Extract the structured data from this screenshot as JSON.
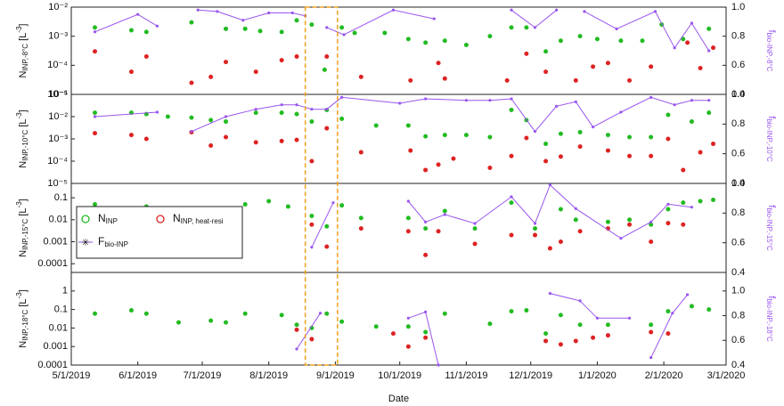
{
  "annotation": {
    "x": [
      "8/18/2019",
      "9/2/2019"
    ],
    "color": "#f0a020"
  },
  "chart_data": [
    {
      "type": "scatter",
      "log_y": true,
      "ylabel": [
        "N",
        "INP,-8°C",
        " [L",
        "-3",
        "]"
      ],
      "y2label": [
        "f",
        "bio-INP,-8°C"
      ],
      "xlim": [
        "5/1/2019",
        "3/1/2020"
      ],
      "ylim": [
        1e-05,
        0.01
      ],
      "yticks": [
        {
          "value": 0.01,
          "label": "10⁻²"
        },
        {
          "value": 0.001,
          "label": "10⁻³"
        },
        {
          "value": 0.0001,
          "label": "10⁻⁴"
        },
        {
          "value": 1e-05,
          "label": "10⁻⁵"
        }
      ],
      "y2lim": [
        0.4,
        1.0
      ],
      "y2ticks": [
        0.4,
        0.6,
        0.8,
        {
          "value": 1.0,
          "label": "1.0"
        }
      ],
      "series": [
        {
          "color": "#22bb22",
          "marker": "circle",
          "x": [
            "5/12/2019",
            "5/29/2019",
            "6/5/2019",
            "6/26/2019",
            "7/12/2019",
            "7/21/2019",
            "7/28/2019",
            "8/7/2019",
            "8/14/2019",
            "8/21/2019",
            "8/27/2019",
            "9/4/2019",
            "9/10/2019",
            "9/24/2019",
            "10/5/2019",
            "10/13/2019",
            "10/22/2019",
            "11/1/2019",
            "11/12/2019",
            "11/22/2019",
            "11/29/2019",
            "12/8/2019",
            "12/15/2019",
            "12/24/2019",
            "1/1/2020",
            "1/12/2020",
            "1/22/2020",
            "1/31/2020",
            "2/10/2020",
            "2/22/2020"
          ],
          "values": [
            0.002,
            0.0016,
            0.0014,
            0.003,
            0.0018,
            0.0018,
            0.0015,
            0.0014,
            0.0035,
            0.0025,
            7e-05,
            0.002,
            0.0013,
            0.0013,
            0.0008,
            0.0006,
            0.0007,
            0.0005,
            0.001,
            0.002,
            0.002,
            0.0003,
            0.0007,
            0.001,
            0.0008,
            0.0007,
            0.0007,
            0.0025,
            0.0008,
            0.0018
          ]
        },
        {
          "color": "#dd2222",
          "marker": "circle",
          "x": [
            "5/12/2019",
            "5/29/2019",
            "6/5/2019",
            "6/26/2019",
            "7/5/2019",
            "7/12/2019",
            "7/26/2019",
            "8/7/2019",
            "8/14/2019",
            "8/28/2019",
            "9/13/2019",
            "10/6/2019",
            "10/19/2019",
            "10/22/2019",
            "11/20/2019",
            "11/29/2019",
            "12/8/2019",
            "12/22/2019",
            "12/30/2019",
            "1/6/2020",
            "1/16/2020",
            "1/26/2020",
            "2/12/2020",
            "2/18/2020",
            "2/24/2020"
          ],
          "values": [
            0.0003,
            6e-05,
            0.0002,
            2.5e-05,
            4e-05,
            0.00013,
            6e-05,
            0.00015,
            0.0002,
            0.0002,
            4e-05,
            3e-05,
            0.00012,
            3.5e-05,
            3e-05,
            0.00025,
            6e-05,
            3e-05,
            9e-05,
            0.00012,
            3e-05,
            9e-05,
            0.0006,
            8e-05,
            0.0004
          ]
        },
        {
          "color": "#9955ee",
          "marker": "dot",
          "axis": "y2",
          "x": [
            "5/12/2019",
            "6/1/2019",
            "6/10/2019",
            null,
            "6/29/2019",
            "7/8/2019",
            "7/20/2019",
            "8/1/2019",
            "8/12/2019",
            "8/18/2019",
            null,
            "8/28/2019",
            "9/5/2019",
            "9/28/2019",
            "10/17/2019",
            null,
            "11/22/2019",
            "12/3/2019",
            "12/13/2019",
            null,
            "12/26/2019",
            "1/10/2020",
            "1/28/2020",
            "2/6/2020",
            "2/14/2020",
            "2/22/2020"
          ],
          "values": [
            0.83,
            0.95,
            0.87,
            null,
            0.98,
            0.97,
            0.91,
            0.96,
            0.96,
            0.94,
            null,
            0.86,
            0.81,
            0.98,
            0.92,
            null,
            0.98,
            0.86,
            0.98,
            null,
            0.97,
            0.85,
            0.97,
            0.72,
            0.89,
            0.7
          ]
        }
      ]
    },
    {
      "type": "scatter",
      "log_y": true,
      "ylabel": [
        "N",
        "INP,-10°C",
        " [L",
        "-3",
        "]"
      ],
      "y2label": [
        "f",
        "bio-INP,-10°C"
      ],
      "xlim": [
        "5/1/2019",
        "3/1/2020"
      ],
      "ylim": [
        1e-05,
        0.1
      ],
      "yticks": [
        {
          "value": 0.1,
          "label": "10⁻¹"
        },
        {
          "value": 0.01,
          "label": "10⁻²"
        },
        {
          "value": 0.001,
          "label": "10⁻³"
        },
        {
          "value": 0.0001,
          "label": "10⁻⁴"
        },
        {
          "value": 1e-05,
          "label": "10⁻⁵"
        }
      ],
      "y2lim": [
        0.4,
        1.0
      ],
      "y2ticks": [
        0.4,
        0.6,
        0.8,
        {
          "value": 1.0,
          "label": "1.0"
        }
      ],
      "series": [
        {
          "color": "#22bb22",
          "marker": "circle",
          "x": [
            "5/12/2019",
            "5/29/2019",
            "6/5/2019",
            "6/15/2019",
            "6/26/2019",
            "7/5/2019",
            "7/12/2019",
            "7/26/2019",
            "8/7/2019",
            "8/14/2019",
            "8/21/2019",
            "8/28/2019",
            "9/4/2019",
            "9/20/2019",
            "10/5/2019",
            "10/13/2019",
            "10/22/2019",
            "11/1/2019",
            "11/12/2019",
            "11/22/2019",
            "11/29/2019",
            "12/8/2019",
            "12/15/2019",
            "12/24/2019",
            "1/6/2020",
            "1/16/2020",
            "1/26/2020",
            "2/3/2020",
            "2/14/2020",
            "2/22/2020"
          ],
          "values": [
            0.015,
            0.015,
            0.013,
            0.01,
            0.009,
            0.007,
            0.006,
            0.015,
            0.015,
            0.013,
            0.006,
            0.02,
            0.008,
            0.004,
            0.004,
            0.0013,
            0.0015,
            0.0015,
            0.0012,
            0.02,
            0.007,
            0.0006,
            0.0017,
            0.002,
            0.0015,
            0.0012,
            0.0012,
            0.012,
            0.006,
            0.015
          ]
        },
        {
          "color": "#dd2222",
          "marker": "circle",
          "x": [
            "5/12/2019",
            "5/29/2019",
            "6/5/2019",
            "6/26/2019",
            "7/5/2019",
            "7/12/2019",
            "7/26/2019",
            "8/7/2019",
            "8/14/2019",
            "8/21/2019",
            "8/28/2019",
            "9/13/2019",
            "10/6/2019",
            "10/13/2019",
            "10/19/2019",
            "10/26/2019",
            "11/12/2019",
            "11/22/2019",
            "11/29/2019",
            "12/8/2019",
            "12/15/2019",
            "12/24/2019",
            "1/6/2020",
            "1/16/2020",
            "1/26/2020",
            "2/3/2020",
            "2/10/2020",
            "2/18/2020",
            "2/24/2020"
          ],
          "values": [
            0.0018,
            0.0015,
            0.001,
            0.002,
            0.0005,
            0.0012,
            0.0007,
            0.0008,
            0.0009,
            0.0001,
            0.003,
            0.00025,
            0.0003,
            4e-05,
            7e-05,
            0.00013,
            5e-05,
            0.00017,
            0.0011,
            0.0001,
            0.00016,
            0.00045,
            0.0003,
            0.00017,
            0.00017,
            0.001,
            4e-05,
            0.00025,
            0.0006
          ]
        },
        {
          "color": "#9955ee",
          "marker": "dot",
          "axis": "y2",
          "x": [
            "5/12/2019",
            "6/10/2019",
            null,
            "6/26/2019",
            "7/12/2019",
            "7/26/2019",
            "8/7/2019",
            "8/14/2019",
            "8/21/2019",
            "8/28/2019",
            "9/4/2019",
            "10/1/2019",
            "10/13/2019",
            "11/1/2019",
            "11/12/2019",
            "11/22/2019",
            "12/3/2019",
            "12/13/2019",
            "12/22/2019",
            "12/30/2019",
            "1/12/2020",
            "1/26/2020",
            "2/6/2020",
            "2/14/2020",
            "2/22/2020"
          ],
          "values": [
            0.85,
            0.88,
            null,
            0.75,
            0.85,
            0.9,
            0.93,
            0.93,
            0.9,
            0.9,
            0.98,
            0.94,
            0.97,
            0.96,
            0.96,
            0.97,
            0.75,
            0.92,
            0.95,
            0.78,
            0.88,
            0.98,
            0.93,
            0.96,
            0.96
          ]
        }
      ]
    },
    {
      "type": "scatter",
      "log_y": true,
      "ylabel": [
        "N",
        "INP,-15°C",
        " [L",
        "-3",
        "]"
      ],
      "y2label": [
        "f",
        "bio-INP,-15°C"
      ],
      "xlim": [
        "5/1/2019",
        "3/1/2020"
      ],
      "ylim": [
        4e-05,
        0.45
      ],
      "yticks": [
        0.1,
        0.01,
        0.001,
        0.0001
      ],
      "y2lim": [
        0.4,
        1.0
      ],
      "y2ticks": [
        0.4,
        0.6,
        0.8,
        {
          "value": 1.0,
          "label": "1.0"
        }
      ],
      "legend": [
        {
          "text": "N",
          "sub": "INP"
        },
        {
          "text": "N",
          "sub": "INP, heat-resi"
        },
        {
          "text": "F",
          "sub": "bio-INP"
        }
      ],
      "series": [
        {
          "color": "#22bb22",
          "marker": "circle",
          "x": [
            "5/12/2019",
            "5/29/2019",
            "6/5/2019",
            "6/15/2019",
            "6/26/2019",
            "7/5/2019",
            "7/21/2019",
            "8/1/2019",
            "8/10/2019",
            "8/21/2019",
            "8/28/2019",
            "9/4/2019",
            "9/13/2019",
            "10/5/2019",
            "10/13/2019",
            "10/22/2019",
            "11/5/2019",
            "11/22/2019",
            "12/3/2019",
            "12/15/2019",
            "12/22/2019",
            "1/6/2020",
            "1/16/2020",
            "1/26/2020",
            "2/3/2020",
            "2/10/2020",
            "2/18/2020",
            "2/24/2020"
          ],
          "values": [
            0.05,
            0.03,
            0.04,
            0.02,
            0.022,
            0.013,
            0.05,
            0.07,
            0.04,
            0.015,
            0.005,
            0.045,
            0.012,
            0.012,
            0.004,
            0.025,
            0.004,
            0.06,
            0.004,
            0.03,
            0.01,
            0.008,
            0.01,
            0.006,
            0.03,
            0.06,
            0.07,
            0.08
          ]
        },
        {
          "color": "#dd2222",
          "marker": "circle",
          "x": [
            "7/5/2019",
            "8/21/2019",
            "8/28/2019",
            "9/13/2019",
            "10/5/2019",
            "10/13/2019",
            "10/19/2019",
            "11/5/2019",
            "11/22/2019",
            "12/3/2019",
            "12/10/2019",
            "12/15/2019",
            "12/24/2019",
            "1/6/2020",
            "1/16/2020",
            "1/26/2020",
            "2/3/2020",
            "2/10/2020"
          ],
          "values": [
            0.006,
            0.006,
            0.0006,
            0.004,
            0.003,
            0.00025,
            0.003,
            0.0008,
            0.002,
            0.002,
            0.0005,
            0.001,
            0.003,
            0.004,
            0.006,
            0.001,
            0.007,
            0.006
          ]
        },
        {
          "color": "#9955ee",
          "marker": "dot",
          "axis": "y2",
          "x": [
            "8/21/2019",
            "8/31/2019",
            null,
            "10/5/2019",
            "10/13/2019",
            "10/22/2019",
            "11/5/2019",
            "11/22/2019",
            "12/3/2019",
            "12/10/2019",
            "12/22/2019",
            "1/12/2020",
            "1/26/2020",
            "2/3/2020",
            "2/14/2020"
          ],
          "values": [
            0.57,
            0.87,
            null,
            0.88,
            0.74,
            0.79,
            0.73,
            0.91,
            0.73,
            0.99,
            0.83,
            0.63,
            0.74,
            0.86,
            0.84
          ]
        }
      ]
    },
    {
      "type": "scatter",
      "log_y": true,
      "ylabel": [
        "N",
        "INP,-18°C",
        " [L",
        "-3",
        "]"
      ],
      "y2label": [
        "f",
        "bio-INP,-18°C"
      ],
      "xlabel": "Date",
      "xlim": [
        "5/1/2019",
        "3/1/2020"
      ],
      "ylim": [
        0.0001,
        10
      ],
      "xticks": [
        "5/1/2019",
        "6/1/2019",
        "7/1/2019",
        "8/1/2019",
        "9/1/2019",
        "10/1/2019",
        "11/1/2019",
        "12/1/2019",
        "1/1/2020",
        "2/1/2020",
        "3/1/2020"
      ],
      "yticks": [
        1,
        0.1,
        0.01,
        0.001,
        0.0001
      ],
      "y2lim": [
        0.4,
        1.15
      ],
      "y2ticks": [
        0.4,
        0.6,
        0.8,
        {
          "value": 1.0,
          "label": "1.0"
        }
      ],
      "series": [
        {
          "color": "#22bb22",
          "marker": "circle",
          "x": [
            "5/12/2019",
            "5/29/2019",
            "6/5/2019",
            "6/20/2019",
            "7/5/2019",
            "7/12/2019",
            "7/21/2019",
            "8/7/2019",
            "8/14/2019",
            "8/21/2019",
            "8/28/2019",
            "9/4/2019",
            "9/20/2019",
            "10/5/2019",
            "10/13/2019",
            "10/22/2019",
            "11/12/2019",
            "11/22/2019",
            "11/29/2019",
            "12/8/2019",
            "12/15/2019",
            "12/24/2019",
            "1/6/2020",
            "1/26/2020",
            "2/3/2020",
            "2/14/2020",
            "2/22/2020"
          ],
          "values": [
            0.06,
            0.09,
            0.06,
            0.02,
            0.025,
            0.02,
            0.06,
            0.05,
            0.015,
            0.01,
            0.06,
            0.022,
            0.012,
            0.012,
            0.006,
            0.06,
            0.017,
            0.08,
            0.09,
            0.005,
            0.05,
            0.015,
            0.015,
            0.015,
            0.08,
            0.15,
            0.1
          ]
        },
        {
          "color": "#dd2222",
          "marker": "circle",
          "x": [
            "8/14/2019",
            "8/21/2019",
            "9/28/2019",
            "10/5/2019",
            "10/13/2019",
            "12/8/2019",
            "12/15/2019",
            "12/22/2019",
            "12/30/2019",
            "1/6/2020",
            "1/26/2020",
            "2/3/2020"
          ],
          "values": [
            0.008,
            0.0025,
            0.005,
            0.001,
            0.003,
            0.002,
            0.0013,
            0.002,
            0.003,
            0.004,
            0.006,
            0.005
          ]
        },
        {
          "color": "#9955ee",
          "marker": "dot",
          "axis": "y2",
          "x": [
            "8/14/2019",
            "8/25/2019",
            null,
            "10/5/2019",
            "10/13/2019",
            "10/19/2019",
            null,
            "12/10/2019",
            "12/24/2019",
            "1/1/2020",
            "1/16/2020",
            null,
            "1/26/2020",
            "2/5/2020",
            "2/12/2020"
          ],
          "values": [
            0.53,
            0.82,
            null,
            0.78,
            0.83,
            0.4,
            null,
            0.98,
            0.92,
            0.78,
            0.78,
            null,
            0.46,
            0.82,
            0.97
          ]
        }
      ]
    }
  ]
}
